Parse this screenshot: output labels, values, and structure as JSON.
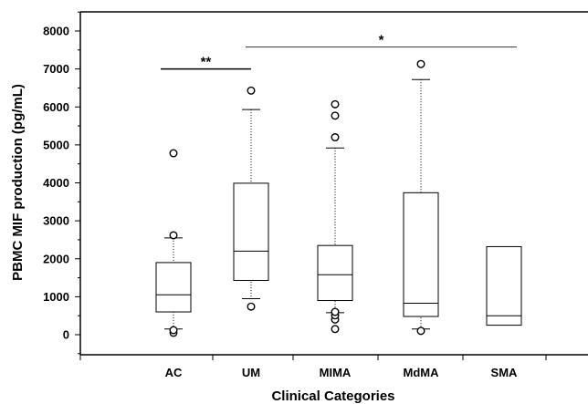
{
  "chart_data": {
    "type": "box",
    "title": "",
    "xlabel": "Clinical Categories",
    "ylabel": "PBMC MIF production (pg/mL)",
    "ylim": [
      -500,
      8600
    ],
    "yticks": [
      0,
      1000,
      2000,
      3000,
      4000,
      5000,
      6000,
      7000,
      8000
    ],
    "grid": false,
    "categories": [
      "AC",
      "UM",
      "MIMA",
      "MdMA",
      "SMA"
    ],
    "boxes": [
      {
        "category": "AC",
        "whisker_low": 150,
        "q1": 600,
        "median": 1050,
        "q3": 1900,
        "whisker_high": 2550,
        "outliers": [
          50,
          120,
          2620,
          4780
        ]
      },
      {
        "category": "UM",
        "whisker_low": 950,
        "q1": 1430,
        "median": 2200,
        "q3": 3990,
        "whisker_high": 5930,
        "outliers": [
          740,
          6430
        ]
      },
      {
        "category": "MIMA",
        "whisker_low": 580,
        "q1": 900,
        "median": 1580,
        "q3": 2350,
        "whisker_high": 4920,
        "outliers": [
          150,
          400,
          510,
          600,
          5200,
          5770,
          6070
        ]
      },
      {
        "category": "MdMA",
        "whisker_low": 150,
        "q1": 480,
        "median": 830,
        "q3": 3740,
        "whisker_high": 6720,
        "outliers": [
          100,
          7130
        ]
      },
      {
        "category": "SMA",
        "whisker_low": 250,
        "q1": 250,
        "median": 500,
        "q3": 2320,
        "whisker_high": 2320,
        "outliers": []
      }
    ],
    "significance": [
      {
        "from": "AC",
        "to": "UM",
        "level": 7000,
        "label": "**"
      },
      {
        "from": "UM",
        "to": "SMA",
        "level": 7580,
        "label": "*"
      }
    ]
  }
}
